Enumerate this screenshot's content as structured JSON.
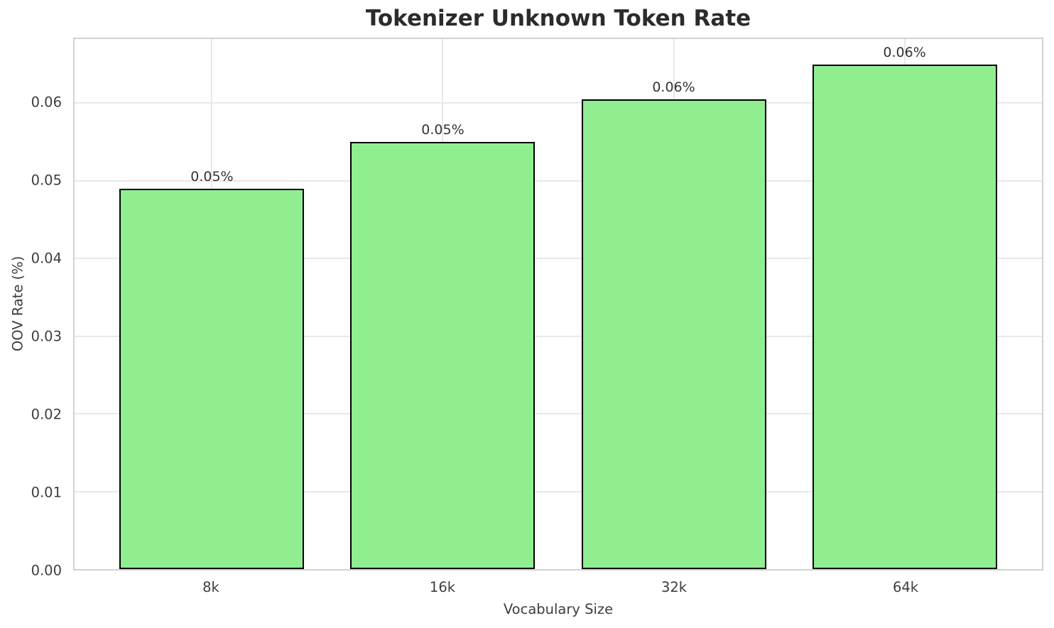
{
  "title": "Tokenizer Unknown Token Rate",
  "chart_data": {
    "type": "bar",
    "title": "Tokenizer Unknown Token Rate",
    "xlabel": "Vocabulary Size",
    "ylabel": "OOV Rate (%)",
    "categories": [
      "8k",
      "16k",
      "32k",
      "64k"
    ],
    "values": [
      0.049,
      0.055,
      0.0605,
      0.065
    ],
    "bar_labels": [
      "0.05%",
      "0.05%",
      "0.06%",
      "0.06%"
    ],
    "ylim": [
      0,
      0.06825
    ],
    "yticks": [
      0.0,
      0.01,
      0.02,
      0.03,
      0.04,
      0.05,
      0.06
    ],
    "ytick_labels": [
      "0.00",
      "0.01",
      "0.02",
      "0.03",
      "0.04",
      "0.05",
      "0.06"
    ],
    "grid": true,
    "legend": null,
    "colors": {
      "bar_fill": "#90EE90",
      "bar_edge": "#000000",
      "grid": "#e8e8e8",
      "axes_edge": "#d2d2d2",
      "tick_text": "#3d3d3d",
      "title_text": "#2b2b2b",
      "background": "#ffffff"
    }
  }
}
